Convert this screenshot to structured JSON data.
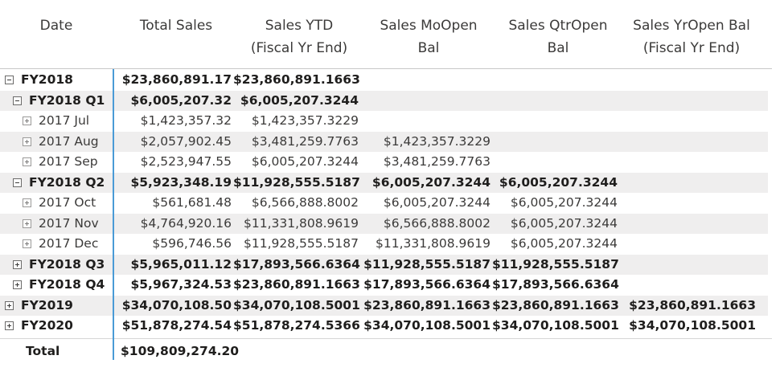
{
  "columns": {
    "date": {
      "line1": "Date",
      "line2": ""
    },
    "total_sales": {
      "line1": "Total Sales",
      "line2": ""
    },
    "sales_ytd": {
      "line1": "Sales YTD",
      "line2": "(Fiscal Yr End)"
    },
    "sales_moopen": {
      "line1": "Sales MoOpen",
      "line2": "Bal"
    },
    "sales_qtropen": {
      "line1": "Sales QtrOpen",
      "line2": "Bal"
    },
    "sales_yropen": {
      "line1": "Sales YrOpen Bal",
      "line2": "(Fiscal Yr End)"
    }
  },
  "rows": [
    {
      "label": "FY2018",
      "level": 0,
      "toggle": "minus",
      "bold": true,
      "band": false,
      "total_sales": "$23,860,891.17",
      "sales_ytd": "$23,860,891.1663",
      "sales_moopen": "",
      "sales_qtropen": "",
      "sales_yropen": ""
    },
    {
      "label": "FY2018 Q1",
      "level": 1,
      "toggle": "minus",
      "bold": true,
      "band": true,
      "total_sales": "$6,005,207.32",
      "sales_ytd": "$6,005,207.3244",
      "sales_moopen": "",
      "sales_qtropen": "",
      "sales_yropen": ""
    },
    {
      "label": "2017 Jul",
      "level": 2,
      "toggle": "plus",
      "bold": false,
      "band": false,
      "total_sales": "$1,423,357.32",
      "sales_ytd": "$1,423,357.3229",
      "sales_moopen": "",
      "sales_qtropen": "",
      "sales_yropen": ""
    },
    {
      "label": "2017 Aug",
      "level": 2,
      "toggle": "plus",
      "bold": false,
      "band": true,
      "total_sales": "$2,057,902.45",
      "sales_ytd": "$3,481,259.7763",
      "sales_moopen": "$1,423,357.3229",
      "sales_qtropen": "",
      "sales_yropen": ""
    },
    {
      "label": "2017 Sep",
      "level": 2,
      "toggle": "plus",
      "bold": false,
      "band": false,
      "total_sales": "$2,523,947.55",
      "sales_ytd": "$6,005,207.3244",
      "sales_moopen": "$3,481,259.7763",
      "sales_qtropen": "",
      "sales_yropen": ""
    },
    {
      "label": "FY2018 Q2",
      "level": 1,
      "toggle": "minus",
      "bold": true,
      "band": true,
      "total_sales": "$5,923,348.19",
      "sales_ytd": "$11,928,555.5187",
      "sales_moopen": "$6,005,207.3244",
      "sales_qtropen": "$6,005,207.3244",
      "sales_yropen": ""
    },
    {
      "label": "2017 Oct",
      "level": 2,
      "toggle": "plus",
      "bold": false,
      "band": false,
      "total_sales": "$561,681.48",
      "sales_ytd": "$6,566,888.8002",
      "sales_moopen": "$6,005,207.3244",
      "sales_qtropen": "$6,005,207.3244",
      "sales_yropen": ""
    },
    {
      "label": "2017 Nov",
      "level": 2,
      "toggle": "plus",
      "bold": false,
      "band": true,
      "total_sales": "$4,764,920.16",
      "sales_ytd": "$11,331,808.9619",
      "sales_moopen": "$6,566,888.8002",
      "sales_qtropen": "$6,005,207.3244",
      "sales_yropen": ""
    },
    {
      "label": "2017 Dec",
      "level": 2,
      "toggle": "plus",
      "bold": false,
      "band": false,
      "total_sales": "$596,746.56",
      "sales_ytd": "$11,928,555.5187",
      "sales_moopen": "$11,331,808.9619",
      "sales_qtropen": "$6,005,207.3244",
      "sales_yropen": ""
    },
    {
      "label": "FY2018 Q3",
      "level": 1,
      "toggle": "plus",
      "bold": true,
      "band": true,
      "total_sales": "$5,965,011.12",
      "sales_ytd": "$17,893,566.6364",
      "sales_moopen": "$11,928,555.5187",
      "sales_qtropen": "$11,928,555.5187",
      "sales_yropen": ""
    },
    {
      "label": "FY2018 Q4",
      "level": 1,
      "toggle": "plus",
      "bold": true,
      "band": false,
      "total_sales": "$5,967,324.53",
      "sales_ytd": "$23,860,891.1663",
      "sales_moopen": "$17,893,566.6364",
      "sales_qtropen": "$17,893,566.6364",
      "sales_yropen": ""
    },
    {
      "label": "FY2019",
      "level": 0,
      "toggle": "plus",
      "bold": true,
      "band": true,
      "total_sales": "$34,070,108.50",
      "sales_ytd": "$34,070,108.5001",
      "sales_moopen": "$23,860,891.1663",
      "sales_qtropen": "$23,860,891.1663",
      "sales_yropen": "$23,860,891.1663"
    },
    {
      "label": "FY2020",
      "level": 0,
      "toggle": "plus",
      "bold": true,
      "band": false,
      "total_sales": "$51,878,274.54",
      "sales_ytd": "$51,878,274.5366",
      "sales_moopen": "$34,070,108.5001",
      "sales_qtropen": "$34,070,108.5001",
      "sales_yropen": "$34,070,108.5001"
    }
  ],
  "total": {
    "label": "Total",
    "total_sales": "$109,809,274.20"
  },
  "colors": {
    "accent_divider": "#4a9bd6",
    "band": "#efeeee",
    "text": "#252423"
  }
}
